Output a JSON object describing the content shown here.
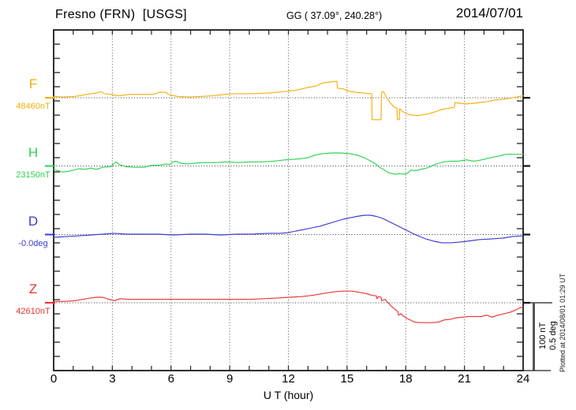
{
  "header": {
    "station": "Fresno (FRN)  [USGS]",
    "coords": "GG ( 37.09°, 240.28°)",
    "date": "2014/07/01"
  },
  "side": {
    "scale_nt": "100 nT",
    "scale_deg": "0.5 deg",
    "plotted_at": "Plotted at 2014/08/01 01:29 UT"
  },
  "chart_data": {
    "type": "line",
    "title": "Fresno (FRN) [USGS] magnetogram for 2014/07/01",
    "xlabel": "U T (hour)",
    "x_range": [
      0,
      24
    ],
    "x_ticks": [
      0,
      3,
      6,
      9,
      12,
      15,
      18,
      21,
      24
    ],
    "x_tick_labels": [
      "0",
      "3",
      "6",
      "9",
      "12",
      "15",
      "18",
      "21",
      "24"
    ],
    "grid": "dotted vertical lines every 3 h; dotted horizontal line at each trace baseline",
    "legend_position": "left margin, one colored label per trace",
    "scale_bar": {
      "nT": 100,
      "deg": 0.5
    },
    "series": [
      {
        "name": "F",
        "unit": "nT",
        "baseline_label": "48460nT",
        "baseline_value": 48460,
        "color": "#F6AF0C",
        "points": [
          [
            0,
            2
          ],
          [
            0.48,
            1
          ],
          [
            1.09,
            2
          ],
          [
            1.69,
            5
          ],
          [
            2.18,
            7
          ],
          [
            2.42,
            9
          ],
          [
            2.58,
            6
          ],
          [
            2.9,
            5
          ],
          [
            3.31,
            3
          ],
          [
            3.91,
            5
          ],
          [
            4.52,
            5
          ],
          [
            5.12,
            5
          ],
          [
            5.4,
            8
          ],
          [
            5.73,
            8
          ],
          [
            5.85,
            5
          ],
          [
            6.33,
            2
          ],
          [
            6.94,
            1
          ],
          [
            7.54,
            2
          ],
          [
            8.15,
            3
          ],
          [
            8.75,
            5
          ],
          [
            9.36,
            6
          ],
          [
            10.16,
            6
          ],
          [
            10.97,
            7
          ],
          [
            11.78,
            9
          ],
          [
            12.38,
            11
          ],
          [
            12.99,
            15
          ],
          [
            13.39,
            17
          ],
          [
            13.79,
            22
          ],
          [
            14.12,
            23
          ],
          [
            14.45,
            24
          ],
          [
            14.48,
            24
          ],
          [
            14.5,
            14
          ],
          [
            14.8,
            13
          ],
          [
            15.0,
            10
          ],
          [
            15.41,
            8
          ],
          [
            15.81,
            7
          ],
          [
            16.21,
            6
          ],
          [
            16.26,
            6
          ],
          [
            16.28,
            -32
          ],
          [
            16.74,
            -32
          ],
          [
            16.76,
            8
          ],
          [
            16.86,
            9
          ],
          [
            17.02,
            0
          ],
          [
            17.22,
            -8
          ],
          [
            17.43,
            -14
          ],
          [
            17.55,
            -15
          ],
          [
            17.57,
            -32
          ],
          [
            17.67,
            -32
          ],
          [
            17.69,
            -16
          ],
          [
            17.83,
            -20
          ],
          [
            18.03,
            -23
          ],
          [
            18.23,
            -25
          ],
          [
            18.63,
            -26
          ],
          [
            19.04,
            -24
          ],
          [
            19.44,
            -21
          ],
          [
            19.85,
            -17
          ],
          [
            20.25,
            -15
          ],
          [
            20.49,
            -14
          ],
          [
            20.51,
            -7
          ],
          [
            20.77,
            -8
          ],
          [
            21.05,
            -9
          ],
          [
            21.46,
            -8
          ],
          [
            22.06,
            -6
          ],
          [
            22.67,
            -3
          ],
          [
            23.27,
            -1
          ],
          [
            23.68,
            1
          ],
          [
            24,
            3
          ]
        ]
      },
      {
        "name": "H",
        "unit": "nT",
        "baseline_label": "23150nT",
        "baseline_value": 23150,
        "color": "#2BD34F",
        "points": [
          [
            0,
            -5
          ],
          [
            0.48,
            -9
          ],
          [
            0.89,
            -7
          ],
          [
            1.29,
            -4
          ],
          [
            1.61,
            -5
          ],
          [
            1.9,
            -3
          ],
          [
            2.18,
            -5
          ],
          [
            2.5,
            -2
          ],
          [
            2.9,
            -1
          ],
          [
            3.19,
            6
          ],
          [
            3.35,
            2
          ],
          [
            3.71,
            -1
          ],
          [
            4.19,
            -2
          ],
          [
            4.64,
            -2
          ],
          [
            5.0,
            1
          ],
          [
            5.4,
            1
          ],
          [
            5.73,
            3
          ],
          [
            5.93,
            2
          ],
          [
            6.09,
            6
          ],
          [
            6.25,
            7
          ],
          [
            6.49,
            4
          ],
          [
            6.82,
            3
          ],
          [
            7.22,
            4
          ],
          [
            7.62,
            5
          ],
          [
            8.23,
            5
          ],
          [
            8.83,
            6
          ],
          [
            9.44,
            5
          ],
          [
            10.04,
            6
          ],
          [
            10.65,
            6
          ],
          [
            11.25,
            7
          ],
          [
            11.86,
            9
          ],
          [
            12.46,
            10
          ],
          [
            12.99,
            12
          ],
          [
            13.39,
            16
          ],
          [
            13.79,
            18
          ],
          [
            14.2,
            19
          ],
          [
            14.68,
            19
          ],
          [
            15.08,
            18
          ],
          [
            15.49,
            16
          ],
          [
            15.89,
            12
          ],
          [
            16.21,
            7
          ],
          [
            16.46,
            3
          ],
          [
            16.66,
            -2
          ],
          [
            16.86,
            -5
          ],
          [
            17.06,
            -9
          ],
          [
            17.26,
            -11
          ],
          [
            17.47,
            -12
          ],
          [
            17.67,
            -11
          ],
          [
            17.87,
            -12
          ],
          [
            18.07,
            -11
          ],
          [
            18.27,
            -6
          ],
          [
            18.51,
            -7
          ],
          [
            18.76,
            -5
          ],
          [
            19.08,
            -3
          ],
          [
            19.4,
            1
          ],
          [
            19.68,
            4
          ],
          [
            19.96,
            6
          ],
          [
            20.29,
            7
          ],
          [
            20.69,
            7
          ],
          [
            21.09,
            9
          ],
          [
            21.5,
            7
          ],
          [
            21.9,
            9
          ],
          [
            22.31,
            12
          ],
          [
            22.71,
            14
          ],
          [
            23.11,
            17
          ],
          [
            23.51,
            17
          ],
          [
            24,
            17
          ]
        ]
      },
      {
        "name": "D",
        "unit": "deg",
        "baseline_label": "-0.0deg",
        "baseline_value": -0.0,
        "color": "#3B3BD0",
        "points": [
          [
            0,
            -0.02
          ],
          [
            0.69,
            -0.014
          ],
          [
            1.29,
            -0.009
          ],
          [
            1.9,
            -0.003
          ],
          [
            2.5,
            0.003
          ],
          [
            3.11,
            0.009
          ],
          [
            3.71,
            0.003
          ],
          [
            4.52,
            0.003
          ],
          [
            5.32,
            0.003
          ],
          [
            6.13,
            -0.003
          ],
          [
            6.94,
            0.003
          ],
          [
            7.74,
            0.003
          ],
          [
            8.55,
            -0.003
          ],
          [
            9.36,
            0.003
          ],
          [
            10.16,
            0.003
          ],
          [
            10.97,
            0.009
          ],
          [
            11.57,
            0.009
          ],
          [
            11.98,
            0.014
          ],
          [
            12.38,
            0.026
          ],
          [
            12.79,
            0.037
          ],
          [
            13.19,
            0.049
          ],
          [
            13.59,
            0.06
          ],
          [
            14.0,
            0.078
          ],
          [
            14.4,
            0.095
          ],
          [
            14.8,
            0.112
          ],
          [
            15.21,
            0.124
          ],
          [
            15.61,
            0.135
          ],
          [
            15.89,
            0.141
          ],
          [
            16.21,
            0.141
          ],
          [
            16.5,
            0.132
          ],
          [
            16.82,
            0.118
          ],
          [
            17.14,
            0.095
          ],
          [
            17.47,
            0.072
          ],
          [
            17.79,
            0.049
          ],
          [
            18.11,
            0.026
          ],
          [
            18.39,
            0.006
          ],
          [
            18.63,
            -0.009
          ],
          [
            19.04,
            -0.032
          ],
          [
            19.44,
            -0.049
          ],
          [
            19.85,
            -0.06
          ],
          [
            20.33,
            -0.06
          ],
          [
            20.73,
            -0.055
          ],
          [
            21.13,
            -0.049
          ],
          [
            21.74,
            -0.037
          ],
          [
            22.35,
            -0.032
          ],
          [
            22.95,
            -0.026
          ],
          [
            23.48,
            -0.014
          ],
          [
            24,
            -0.009
          ]
        ]
      },
      {
        "name": "Z",
        "unit": "nT",
        "baseline_label": "42610nT",
        "baseline_value": 42610,
        "color": "#EE3333",
        "points": [
          [
            0,
            2
          ],
          [
            0.48,
            2
          ],
          [
            1.09,
            3
          ],
          [
            1.49,
            5
          ],
          [
            1.9,
            7
          ],
          [
            2.18,
            8
          ],
          [
            2.5,
            8
          ],
          [
            2.82,
            5
          ],
          [
            3.11,
            3
          ],
          [
            3.39,
            6
          ],
          [
            3.79,
            5
          ],
          [
            4.52,
            5
          ],
          [
            5.32,
            5
          ],
          [
            6.13,
            5
          ],
          [
            6.94,
            5
          ],
          [
            7.74,
            5
          ],
          [
            8.55,
            5
          ],
          [
            9.36,
            5
          ],
          [
            10.16,
            5
          ],
          [
            10.77,
            6
          ],
          [
            11.45,
            7
          ],
          [
            12.06,
            8
          ],
          [
            12.66,
            9
          ],
          [
            13.27,
            11
          ],
          [
            13.87,
            14
          ],
          [
            14.36,
            16
          ],
          [
            14.8,
            17
          ],
          [
            15.25,
            17
          ],
          [
            15.65,
            15
          ],
          [
            16.05,
            13
          ],
          [
            16.26,
            11
          ],
          [
            16.5,
            10
          ],
          [
            16.52,
            6
          ],
          [
            16.62,
            9
          ],
          [
            16.74,
            8
          ],
          [
            16.76,
            3
          ],
          [
            16.94,
            5
          ],
          [
            17.1,
            0
          ],
          [
            17.26,
            -5
          ],
          [
            17.43,
            -9
          ],
          [
            17.59,
            -13
          ],
          [
            17.63,
            -18
          ],
          [
            17.75,
            -16
          ],
          [
            17.91,
            -20
          ],
          [
            18.07,
            -23
          ],
          [
            18.23,
            -25
          ],
          [
            18.43,
            -28
          ],
          [
            18.71,
            -29
          ],
          [
            19.08,
            -29
          ],
          [
            19.4,
            -29
          ],
          [
            19.68,
            -28
          ],
          [
            19.96,
            -25
          ],
          [
            20.29,
            -24
          ],
          [
            20.57,
            -22
          ],
          [
            20.89,
            -21
          ],
          [
            21.21,
            -20
          ],
          [
            21.53,
            -20
          ],
          [
            21.86,
            -20
          ],
          [
            22.14,
            -18
          ],
          [
            22.42,
            -21
          ],
          [
            22.7,
            -18
          ],
          [
            23.03,
            -16
          ],
          [
            23.31,
            -14
          ],
          [
            23.59,
            -11
          ],
          [
            23.79,
            -8
          ],
          [
            24,
            -6
          ]
        ]
      }
    ]
  }
}
